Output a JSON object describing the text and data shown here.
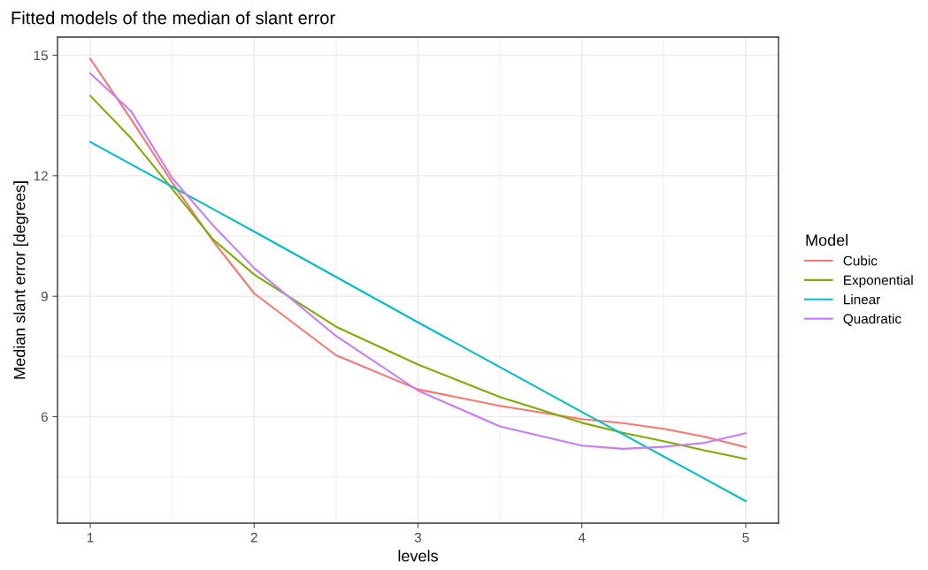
{
  "chart_data": {
    "type": "line",
    "title": "Fitted models of the median of slant error",
    "xlabel": "levels",
    "ylabel": "Median slant error [degrees]",
    "legend_title": "Model",
    "series": [
      {
        "name": "Cubic",
        "color": "#f8766d",
        "x": [
          1,
          1.25,
          1.5,
          1.75,
          2,
          2.5,
          3,
          3.5,
          4,
          4.25,
          4.5,
          4.75,
          5
        ],
        "values": [
          14.91,
          13.4,
          11.83,
          10.37,
          9.07,
          7.53,
          6.68,
          6.27,
          5.94,
          5.84,
          5.7,
          5.5,
          5.24
        ]
      },
      {
        "name": "Exponential",
        "color": "#7cae00",
        "x": [
          1,
          1.25,
          1.5,
          1.75,
          2,
          2.5,
          3,
          3.5,
          4,
          4.25,
          4.5,
          4.75,
          5
        ],
        "values": [
          13.99,
          12.93,
          11.67,
          10.41,
          9.54,
          8.24,
          7.3,
          6.49,
          5.85,
          5.6,
          5.39,
          5.16,
          4.95
        ]
      },
      {
        "name": "Linear",
        "color": "#00bfc4",
        "x": [
          1,
          2,
          3,
          4,
          5
        ],
        "values": [
          12.84,
          10.61,
          8.35,
          6.12,
          3.9
        ]
      },
      {
        "name": "Quadratic",
        "color": "#c77cff",
        "x": [
          1,
          1.25,
          1.5,
          1.75,
          2,
          2.5,
          3,
          3.5,
          4,
          4.25,
          4.5,
          4.75,
          5
        ],
        "values": [
          14.55,
          13.6,
          11.94,
          10.76,
          9.7,
          8.01,
          6.65,
          5.76,
          5.28,
          5.2,
          5.25,
          5.35,
          5.59
        ]
      }
    ],
    "xlim": [
      0.8,
      5.2
    ],
    "ylim": [
      3.35,
      15.45
    ],
    "xticks": [
      1,
      2,
      3,
      4,
      5
    ],
    "yticks": [
      6,
      9,
      12,
      15
    ],
    "grid": true,
    "legend": "right"
  }
}
